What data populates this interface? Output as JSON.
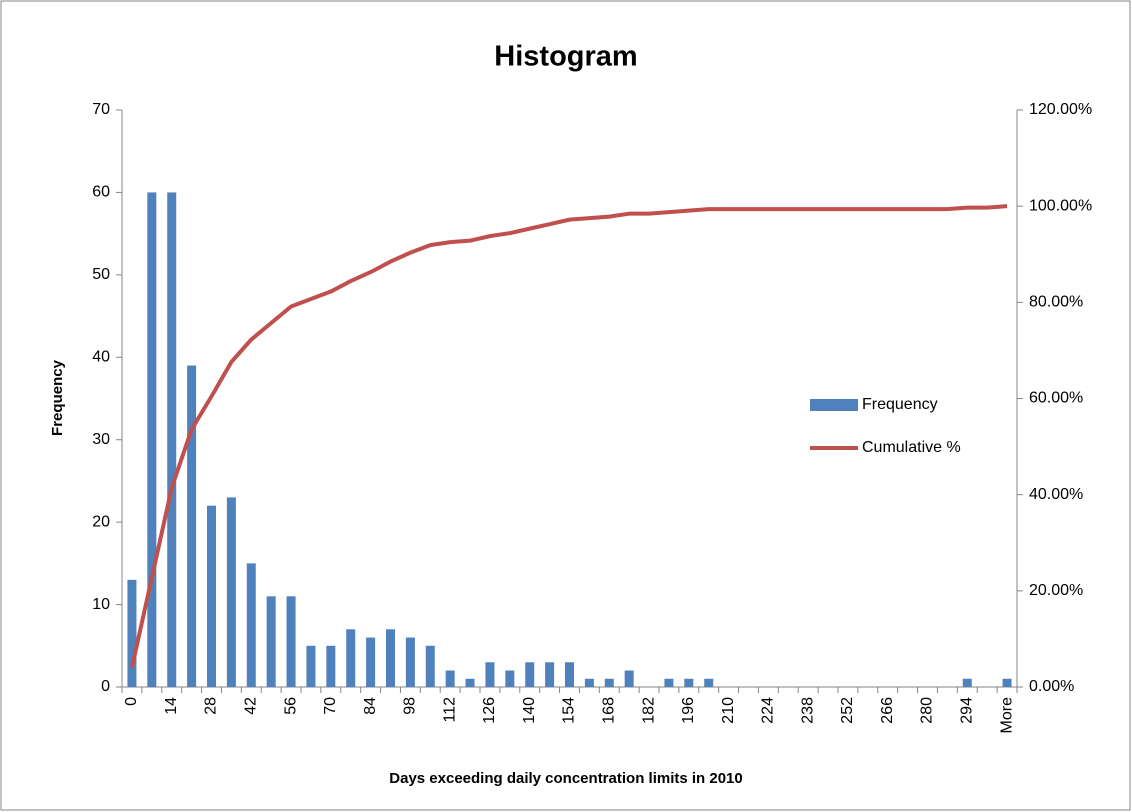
{
  "chart_data": {
    "type": "bar",
    "title": "Histogram",
    "x_label": "Days exceeding daily concentration limits in 2010",
    "y_label": "Frequency",
    "categories": [
      "0",
      null,
      "14",
      null,
      "28",
      null,
      "42",
      null,
      "56",
      null,
      "70",
      null,
      "84",
      null,
      "98",
      null,
      "112",
      null,
      "126",
      null,
      "140",
      null,
      "154",
      null,
      "168",
      null,
      "182",
      null,
      "196",
      null,
      "210",
      null,
      "224",
      null,
      "238",
      null,
      "252",
      null,
      "266",
      null,
      "280",
      null,
      "294",
      null,
      "More"
    ],
    "series": [
      {
        "name": "Frequency",
        "type": "bar",
        "color": "#4f81bd",
        "values": [
          13,
          60,
          60,
          39,
          22,
          23,
          15,
          11,
          11,
          5,
          5,
          7,
          6,
          7,
          6,
          5,
          2,
          1,
          3,
          2,
          3,
          3,
          3,
          1,
          1,
          2,
          0,
          1,
          1,
          1,
          0,
          0,
          0,
          0,
          0,
          0,
          0,
          0,
          0,
          0,
          0,
          0,
          1,
          0,
          1
        ]
      },
      {
        "name": "Cumulative %",
        "type": "line",
        "color": "#c0504d",
        "axis": "y2",
        "values": [
          4.05,
          22.74,
          41.43,
          53.58,
          60.44,
          67.6,
          72.27,
          75.7,
          79.13,
          80.69,
          82.24,
          84.42,
          86.29,
          88.47,
          90.34,
          91.9,
          92.52,
          92.83,
          93.77,
          94.39,
          95.33,
          96.26,
          97.2,
          97.51,
          97.82,
          98.44,
          98.44,
          98.75,
          99.07,
          99.38,
          99.38,
          99.38,
          99.38,
          99.38,
          99.38,
          99.38,
          99.38,
          99.38,
          99.38,
          99.38,
          99.38,
          99.38,
          99.69,
          99.69,
          100
        ]
      }
    ],
    "ylim": [
      0,
      70
    ],
    "yticks": [
      0,
      10,
      20,
      30,
      40,
      50,
      60,
      70
    ],
    "y2lim": [
      0,
      120
    ],
    "y2ticks": [
      {
        "value": 0,
        "label": "0.00%"
      },
      {
        "value": 20,
        "label": "20.00%"
      },
      {
        "value": 40,
        "label": "40.00%"
      },
      {
        "value": 60,
        "label": "60.00%"
      },
      {
        "value": 80,
        "label": "80.00%"
      },
      {
        "value": 100,
        "label": "100.00%"
      },
      {
        "value": 120,
        "label": "120.00%"
      }
    ],
    "grid": false,
    "legend": "right"
  }
}
